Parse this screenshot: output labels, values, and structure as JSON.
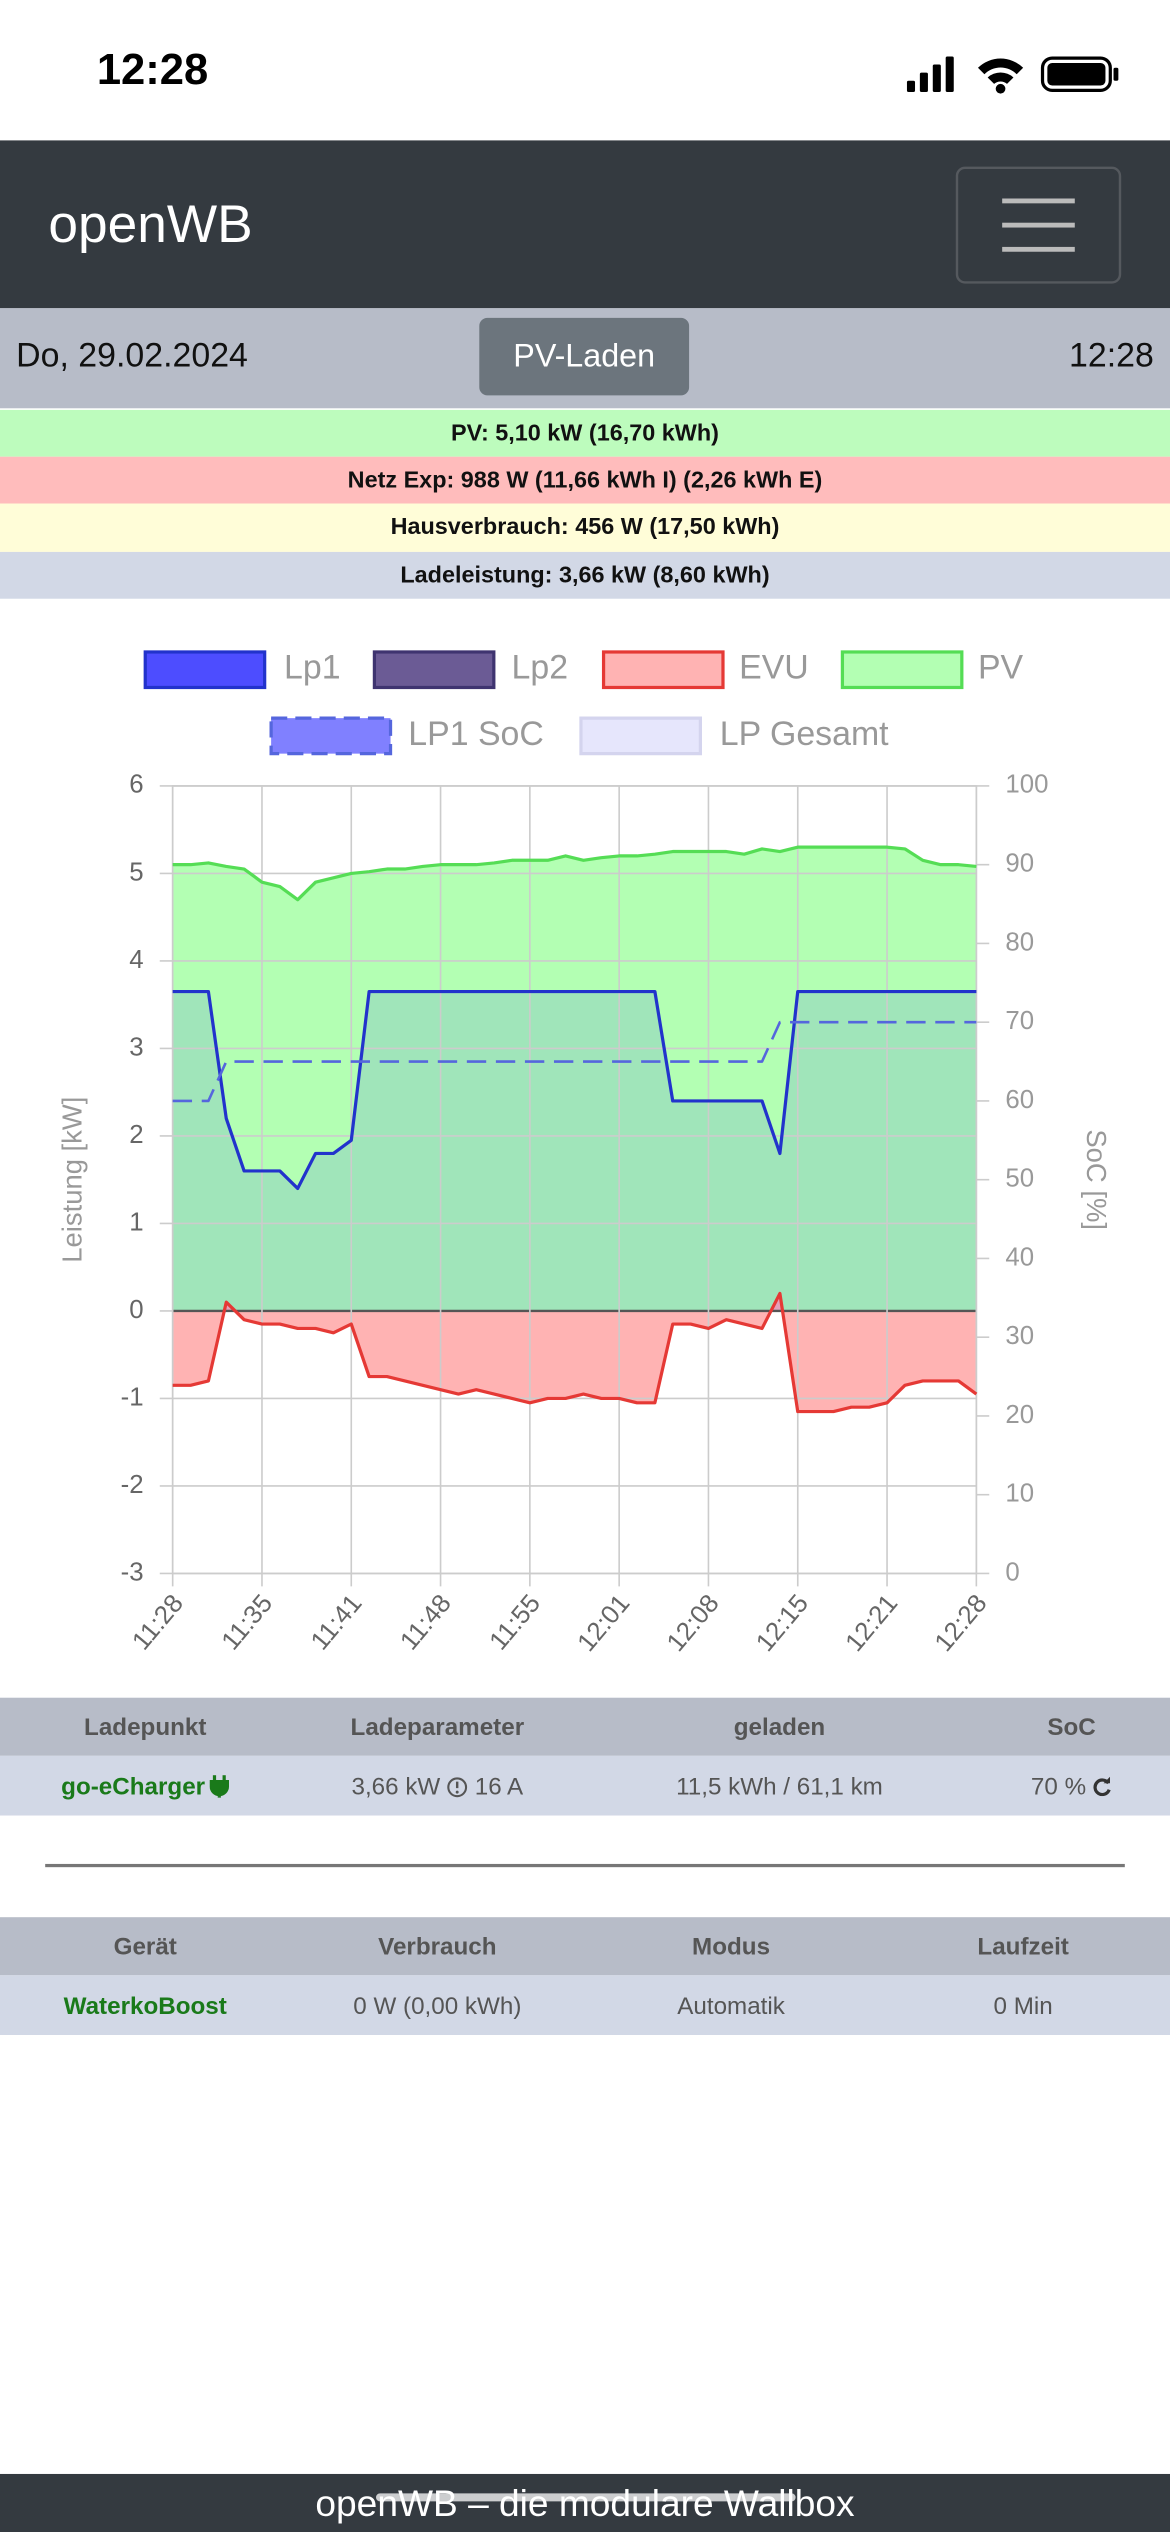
{
  "status_bar": {
    "time": "12:28"
  },
  "navbar": {
    "brand": "openWB"
  },
  "info_bar": {
    "date": "Do, 29.02.2024",
    "mode_button": "PV-Laden",
    "time": "12:28"
  },
  "summary": [
    "PV: 5,10 kW (16,70 kWh)",
    "Netz Exp: 988 W (11,66 kWh I) (2,26 kWh E)",
    "Hausverbrauch: 456 W (17,50 kWh)",
    "Ladeleistung: 3,66 kW (8,60 kWh)"
  ],
  "chart_data": {
    "type": "line",
    "y_label": "Leistung [kW]",
    "y2_label": "SoC [%]",
    "categories": [
      "11:28",
      null,
      null,
      null,
      null,
      "11:35",
      null,
      null,
      null,
      null,
      "11:41",
      null,
      null,
      null,
      null,
      "11:48",
      null,
      null,
      null,
      null,
      "11:55",
      null,
      null,
      null,
      null,
      "12:01",
      null,
      null,
      null,
      null,
      "12:08",
      null,
      null,
      null,
      null,
      "12:15",
      null,
      null,
      null,
      null,
      "12:21",
      null,
      null,
      null,
      null,
      "12:28"
    ],
    "ylim": [
      -3,
      6
    ],
    "yticks": [
      -3,
      -2,
      -1,
      0,
      1,
      2,
      3,
      4,
      5,
      6
    ],
    "y2lim": [
      0,
      100
    ],
    "y2ticks": [
      0,
      10,
      20,
      30,
      40,
      50,
      60,
      70,
      80,
      90,
      100
    ],
    "grid": true,
    "series": [
      {
        "name": "Lp1",
        "color": "#2233cc",
        "fill": "#4d4dff",
        "area_fill": "rgba(0,0,255,0.1)",
        "values": [
          3.65,
          3.65,
          3.65,
          2.2,
          1.6,
          1.6,
          1.6,
          1.4,
          1.8,
          1.8,
          1.95,
          3.65,
          3.65,
          3.65,
          3.65,
          3.65,
          3.65,
          3.65,
          3.65,
          3.65,
          3.65,
          3.65,
          3.65,
          3.65,
          3.65,
          3.65,
          3.65,
          3.65,
          2.4,
          2.4,
          2.4,
          2.4,
          2.4,
          2.4,
          1.8,
          3.65,
          3.65,
          3.65,
          3.65,
          3.65,
          3.65,
          3.65,
          3.65,
          3.65,
          3.65,
          3.65
        ]
      },
      {
        "name": "Lp2",
        "color": "#3f3470",
        "fill": "#6b5b95",
        "values": [
          null,
          null,
          null,
          null,
          null,
          null,
          null,
          null,
          null,
          null,
          null,
          null,
          null,
          null,
          null,
          null,
          null,
          null,
          null,
          null,
          null,
          null,
          null,
          null,
          null,
          null,
          null,
          null,
          null,
          null,
          null,
          null,
          null,
          null,
          null,
          null,
          null,
          null,
          null,
          null,
          null,
          null,
          null,
          null,
          null,
          null
        ]
      },
      {
        "name": "EVU",
        "color": "#e53935",
        "fill": "#ffb3b3",
        "area_fill": "#ffb3b3",
        "values": [
          -0.85,
          -0.85,
          -0.8,
          0.1,
          -0.1,
          -0.15,
          -0.15,
          -0.2,
          -0.2,
          -0.25,
          -0.15,
          -0.75,
          -0.75,
          -0.8,
          -0.85,
          -0.9,
          -0.95,
          -0.9,
          -0.95,
          -1,
          -1.05,
          -1,
          -1,
          -0.95,
          -1,
          -1,
          -1.05,
          -1.05,
          -0.15,
          -0.15,
          -0.2,
          -0.1,
          -0.15,
          -0.2,
          0.2,
          -1.15,
          -1.15,
          -1.15,
          -1.1,
          -1.1,
          -1.05,
          -0.85,
          -0.8,
          -0.8,
          -0.8,
          -0.95
        ]
      },
      {
        "name": "PV",
        "color": "#55dd55",
        "fill": "#b3ffb3",
        "area_fill": "#b3ffb3",
        "values": [
          5.1,
          5.1,
          5.12,
          5.08,
          5.05,
          4.9,
          4.85,
          4.7,
          4.9,
          4.95,
          5.0,
          5.02,
          5.05,
          5.05,
          5.08,
          5.1,
          5.1,
          5.1,
          5.12,
          5.15,
          5.15,
          5.15,
          5.2,
          5.15,
          5.18,
          5.2,
          5.2,
          5.22,
          5.25,
          5.25,
          5.25,
          5.25,
          5.22,
          5.28,
          5.25,
          5.3,
          5.3,
          5.3,
          5.3,
          5.3,
          5.3,
          5.28,
          5.15,
          5.1,
          5.1,
          5.08
        ]
      },
      {
        "name": "LP1 SoC",
        "color": "#5566dd",
        "fill": "#8080ff",
        "dashed": true,
        "axis": "y2",
        "values": [
          60,
          60,
          60,
          65,
          65,
          65,
          65,
          65,
          65,
          65,
          65,
          65,
          65,
          65,
          65,
          65,
          65,
          65,
          65,
          65,
          65,
          65,
          65,
          65,
          65,
          65,
          65,
          65,
          65,
          65,
          65,
          65,
          65,
          65,
          70,
          70,
          70,
          70,
          70,
          70,
          70,
          70,
          70,
          70,
          70,
          70
        ]
      },
      {
        "name": "LP Gesamt",
        "color": "#d4d4ee",
        "fill": "#e6e6fc",
        "values": [
          null,
          null,
          null,
          null,
          null,
          null,
          null,
          null,
          null,
          null,
          null,
          null,
          null,
          null,
          null,
          null,
          null,
          null,
          null,
          null,
          null,
          null,
          null,
          null,
          null,
          null,
          null,
          null,
          null,
          null,
          null,
          null,
          null,
          null,
          null,
          null,
          null,
          null,
          null,
          null,
          null,
          null,
          null,
          null,
          null,
          null
        ]
      }
    ]
  },
  "charge_table": {
    "headers": [
      "Ladepunkt",
      "Ladeparameter",
      "geladen",
      "SoC"
    ],
    "row": {
      "name": "go-eCharger",
      "power": "3,66 kW",
      "current": "16 A",
      "charged": "11,5 kWh / 61,1 km",
      "soc": "70 %"
    }
  },
  "device_table": {
    "headers": [
      "Gerät",
      "Verbrauch",
      "Modus",
      "Laufzeit"
    ],
    "row": [
      "WaterkoBoost",
      "0 W (0,00 kWh)",
      "Automatik",
      "0 Min"
    ]
  },
  "footer": "openWB – die modulare Wallbox"
}
